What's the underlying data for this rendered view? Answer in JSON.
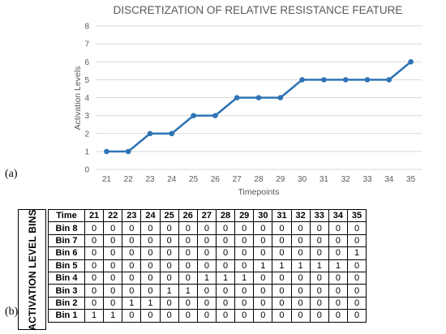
{
  "panel_labels": {
    "a": "(a)",
    "b": "(b)"
  },
  "chart_data": {
    "type": "line",
    "title": "DISCRETIZATION OF RELATIVE RESISTANCE FEATURE",
    "xlabel": "Timepoints",
    "ylabel": "Activation Levels",
    "x": [
      21,
      22,
      23,
      24,
      25,
      26,
      27,
      28,
      29,
      30,
      31,
      32,
      33,
      34,
      35
    ],
    "series": [
      {
        "values": [
          1,
          1,
          2,
          2,
          3,
          3,
          4,
          4,
          4,
          5,
          5,
          5,
          5,
          5,
          6
        ]
      }
    ],
    "ylim": [
      0,
      8
    ],
    "yticks": [
      0,
      1,
      2,
      3,
      4,
      5,
      6,
      7,
      8
    ],
    "grid": true,
    "color": "#2E74B5"
  },
  "table": {
    "side_label": "ACTIVATION LEVEL BINS",
    "header_first": "Time",
    "columns": [
      "21",
      "22",
      "23",
      "24",
      "25",
      "26",
      "27",
      "28",
      "29",
      "30",
      "31",
      "32",
      "33",
      "34",
      "35"
    ],
    "rows": [
      {
        "label": "Bin 8",
        "values": [
          "0",
          "0",
          "0",
          "0",
          "0",
          "0",
          "0",
          "0",
          "0",
          "0",
          "0",
          "0",
          "0",
          "0",
          "0"
        ]
      },
      {
        "label": "Bin 7",
        "values": [
          "0",
          "0",
          "0",
          "0",
          "0",
          "0",
          "0",
          "0",
          "0",
          "0",
          "0",
          "0",
          "0",
          "0",
          "0"
        ]
      },
      {
        "label": "Bin 6",
        "values": [
          "0",
          "0",
          "0",
          "0",
          "0",
          "0",
          "0",
          "0",
          "0",
          "0",
          "0",
          "0",
          "0",
          "0",
          "1"
        ]
      },
      {
        "label": "Bin 5",
        "values": [
          "0",
          "0",
          "0",
          "0",
          "0",
          "0",
          "0",
          "0",
          "0",
          "1",
          "1",
          "1",
          "1",
          "1",
          "0"
        ]
      },
      {
        "label": "Bin 4",
        "values": [
          "0",
          "0",
          "0",
          "0",
          "0",
          "0",
          "1",
          "1",
          "1",
          "0",
          "0",
          "0",
          "0",
          "0",
          "0"
        ]
      },
      {
        "label": "Bin 3",
        "values": [
          "0",
          "0",
          "0",
          "0",
          "1",
          "1",
          "0",
          "0",
          "0",
          "0",
          "0",
          "0",
          "0",
          "0",
          "0"
        ]
      },
      {
        "label": "Bin 2",
        "values": [
          "0",
          "0",
          "1",
          "1",
          "0",
          "0",
          "0",
          "0",
          "0",
          "0",
          "0",
          "0",
          "0",
          "0",
          "0"
        ]
      },
      {
        "label": "Bin 1",
        "values": [
          "1",
          "1",
          "0",
          "0",
          "0",
          "0",
          "0",
          "0",
          "0",
          "0",
          "0",
          "0",
          "0",
          "0",
          "0"
        ]
      }
    ]
  }
}
